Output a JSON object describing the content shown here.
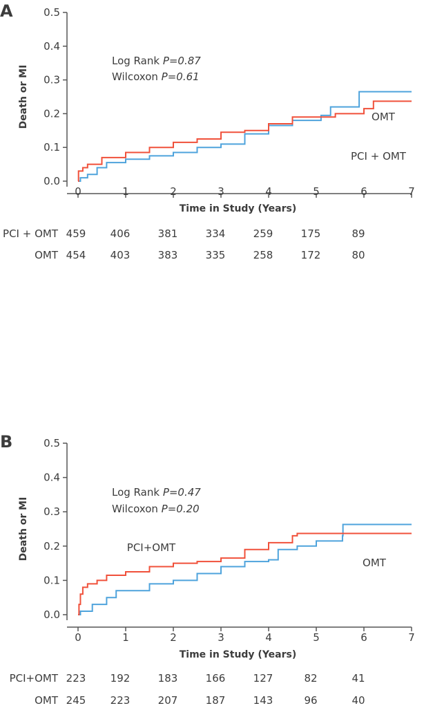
{
  "colors": {
    "pci": "#f0503a",
    "omt": "#4ea3dc",
    "axis": "#555555"
  },
  "chart_data": [
    {
      "type": "line",
      "panel": "A",
      "xlabel": "Time in Study (Years)",
      "ylabel": "Death or MI",
      "xlim": [
        0,
        7
      ],
      "ylim": [
        0,
        0.5
      ],
      "xticks": [
        "0",
        "1",
        "2",
        "3",
        "4",
        "5",
        "6",
        "7"
      ],
      "yticks": [
        "0.0",
        "0.1",
        "0.2",
        "0.3",
        "0.4",
        "0.5"
      ],
      "stats": [
        {
          "label": "Log Rank ",
          "p": "P=0.87"
        },
        {
          "label": "Wilcoxon ",
          "p": "P=0.61"
        }
      ],
      "series": [
        {
          "name": "OMT",
          "label": "OMT",
          "color_key": "omt",
          "steps": [
            [
              0,
              0
            ],
            [
              0.05,
              0.01
            ],
            [
              0.2,
              0.02
            ],
            [
              0.4,
              0.04
            ],
            [
              0.6,
              0.055
            ],
            [
              1,
              0.065
            ],
            [
              1.5,
              0.075
            ],
            [
              2,
              0.085
            ],
            [
              2.5,
              0.1
            ],
            [
              3,
              0.11
            ],
            [
              3.5,
              0.14
            ],
            [
              4,
              0.165
            ],
            [
              4.5,
              0.18
            ],
            [
              5.1,
              0.195
            ],
            [
              5.3,
              0.22
            ],
            [
              5.9,
              0.265
            ],
            [
              7,
              0.265
            ]
          ]
        },
        {
          "name": "PCI + OMT",
          "label": "PCI + OMT",
          "color_key": "pci",
          "steps": [
            [
              0,
              0
            ],
            [
              0.01,
              0.03
            ],
            [
              0.1,
              0.04
            ],
            [
              0.2,
              0.05
            ],
            [
              0.5,
              0.07
            ],
            [
              1,
              0.085
            ],
            [
              1.5,
              0.1
            ],
            [
              2,
              0.115
            ],
            [
              2.5,
              0.125
            ],
            [
              3,
              0.145
            ],
            [
              3.5,
              0.15
            ],
            [
              4,
              0.17
            ],
            [
              4.5,
              0.19
            ],
            [
              5.4,
              0.2
            ],
            [
              6,
              0.215
            ],
            [
              6.2,
              0.237
            ],
            [
              7,
              0.237
            ]
          ]
        }
      ],
      "risk_table": [
        {
          "group": "PCI + OMT",
          "values": [
            "459",
            "406",
            "381",
            "334",
            "259",
            "175",
            "89"
          ]
        },
        {
          "group": "OMT",
          "values": [
            "454",
            "403",
            "383",
            "335",
            "258",
            "172",
            "80"
          ]
        }
      ]
    },
    {
      "type": "line",
      "panel": "B",
      "xlabel": "Time in Study (Years)",
      "ylabel": "Death or MI",
      "xlim": [
        0,
        7
      ],
      "ylim": [
        0,
        0.5
      ],
      "xticks": [
        "0",
        "1",
        "2",
        "3",
        "4",
        "5",
        "6",
        "7"
      ],
      "yticks": [
        "0.0",
        "0.1",
        "0.2",
        "0.3",
        "0.4",
        "0.5"
      ],
      "stats": [
        {
          "label": "Log Rank ",
          "p": "P=0.47"
        },
        {
          "label": "Wilcoxon ",
          "p": "P=0.20"
        }
      ],
      "series": [
        {
          "name": "OMT",
          "label": "OMT",
          "color_key": "omt",
          "steps": [
            [
              0,
              0
            ],
            [
              0.05,
              0.01
            ],
            [
              0.3,
              0.03
            ],
            [
              0.6,
              0.05
            ],
            [
              0.8,
              0.07
            ],
            [
              1.5,
              0.09
            ],
            [
              2,
              0.1
            ],
            [
              2.5,
              0.12
            ],
            [
              3,
              0.14
            ],
            [
              3.5,
              0.155
            ],
            [
              4,
              0.16
            ],
            [
              4.2,
              0.19
            ],
            [
              4.6,
              0.2
            ],
            [
              5,
              0.215
            ],
            [
              5.55,
              0.23
            ],
            [
              5.56,
              0.263
            ],
            [
              7,
              0.263
            ]
          ]
        },
        {
          "name": "PCI+OMT",
          "label": "PCI+OMT",
          "color_key": "pci",
          "steps": [
            [
              0,
              0
            ],
            [
              0.02,
              0.03
            ],
            [
              0.05,
              0.06
            ],
            [
              0.1,
              0.08
            ],
            [
              0.2,
              0.09
            ],
            [
              0.4,
              0.1
            ],
            [
              0.6,
              0.115
            ],
            [
              1,
              0.125
            ],
            [
              1.5,
              0.14
            ],
            [
              2,
              0.15
            ],
            [
              2.5,
              0.155
            ],
            [
              3,
              0.165
            ],
            [
              3.5,
              0.19
            ],
            [
              4,
              0.21
            ],
            [
              4.5,
              0.23
            ],
            [
              4.6,
              0.237
            ],
            [
              7,
              0.237
            ]
          ]
        }
      ],
      "risk_table": [
        {
          "group": "PCI+OMT",
          "values": [
            "223",
            "192",
            "183",
            "166",
            "127",
            "82",
            "41"
          ]
        },
        {
          "group": "OMT",
          "values": [
            "245",
            "223",
            "207",
            "187",
            "143",
            "96",
            "40"
          ]
        }
      ]
    }
  ]
}
